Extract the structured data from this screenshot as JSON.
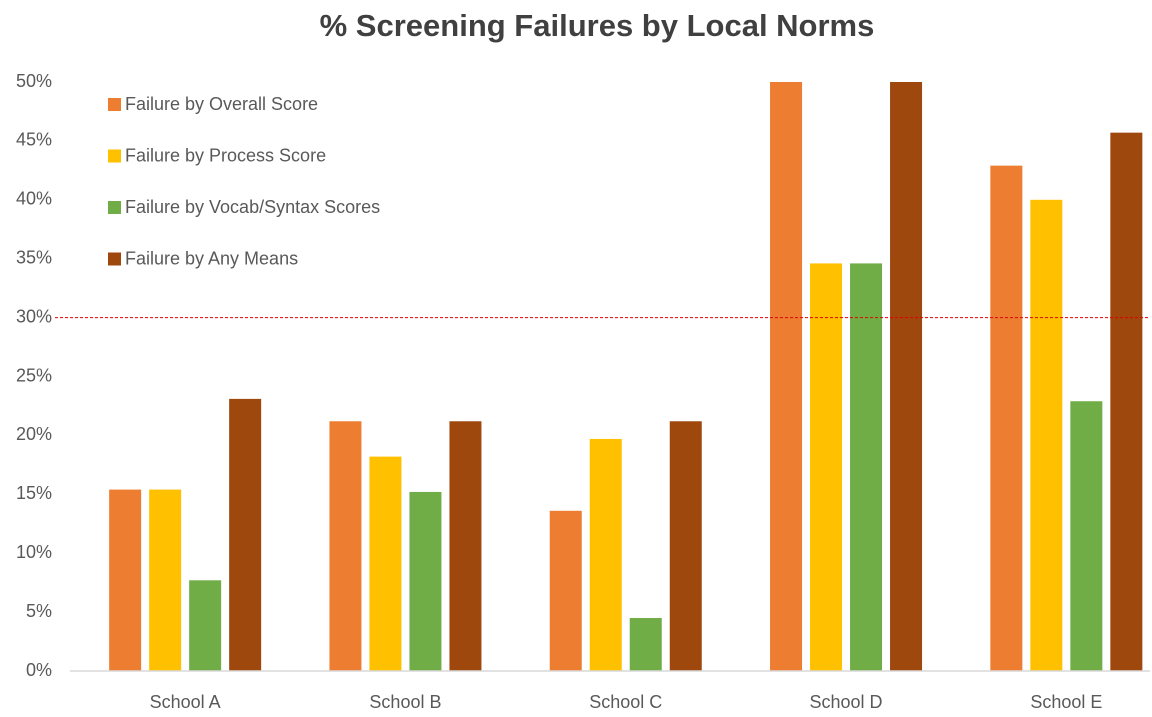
{
  "chart_data": {
    "type": "bar",
    "title": "% Screening Failures by Local Norms",
    "categories": [
      "School A",
      "School B",
      "School C",
      "School D",
      "School E"
    ],
    "series": [
      {
        "name": "Failure by Overall Score",
        "color": "#ED7D31",
        "values": [
          15.4,
          21.2,
          13.6,
          50,
          42.9
        ]
      },
      {
        "name": "Failure by Process Score",
        "color": "#FFC000",
        "values": [
          15.4,
          18.2,
          19.7,
          34.6,
          40
        ]
      },
      {
        "name": "Failure by Vocab/Syntax Scores",
        "color": "#70AD47",
        "values": [
          7.7,
          15.2,
          4.5,
          34.6,
          22.9
        ]
      },
      {
        "name": "Failure by Any Means",
        "color": "#9E480E",
        "values": [
          23.1,
          21.2,
          21.2,
          50,
          45.7
        ]
      }
    ],
    "ylim": [
      0,
      50
    ],
    "yticks": [
      {
        "value": 0,
        "label": "0%"
      },
      {
        "value": 5,
        "label": "5%"
      },
      {
        "value": 10,
        "label": "10%"
      },
      {
        "value": 15,
        "label": "15%"
      },
      {
        "value": 20,
        "label": "20%"
      },
      {
        "value": 25,
        "label": "25%"
      },
      {
        "value": 30,
        "label": "30%"
      },
      {
        "value": 35,
        "label": "35%"
      },
      {
        "value": 40,
        "label": "40%"
      },
      {
        "value": 45,
        "label": "45%"
      },
      {
        "value": 50,
        "label": "50%"
      }
    ],
    "grid": false,
    "legend": "upper left",
    "reference_line": {
      "value": 30,
      "color": "#E00000"
    }
  }
}
